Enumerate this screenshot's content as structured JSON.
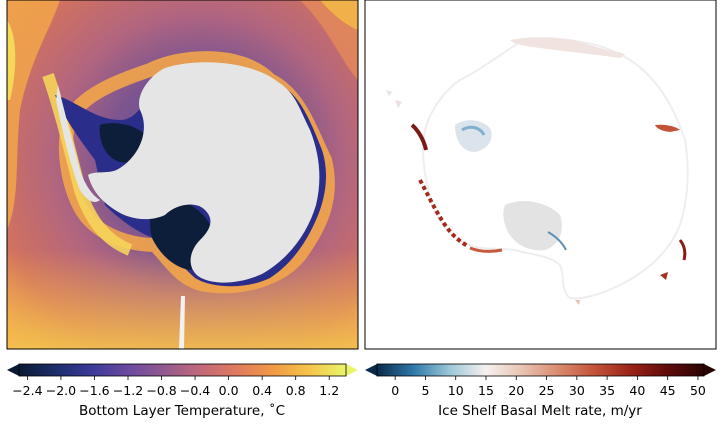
{
  "chart_data": [
    {
      "type": "heatmap",
      "subject": "map of Antarctica (south polar projection)",
      "colorbar": {
        "label": "Bottom Layer Temperature, ˚C",
        "ticks": [
          "−2.4",
          "−2.0",
          "−1.6",
          "−1.2",
          "−0.8",
          "−0.4",
          "0.0",
          "0.4",
          "0.8",
          "1.2"
        ],
        "range": [
          -2.5,
          1.4
        ],
        "extend": "both",
        "colormap": [
          "#0b1a33",
          "#1d2d6b",
          "#3b3a98",
          "#6a4aa0",
          "#93598f",
          "#c2697a",
          "#e07a5f",
          "#f09a44",
          "#f5c54b",
          "#e8f56a"
        ]
      },
      "land_color": "#e5e5e5"
    },
    {
      "type": "heatmap",
      "subject": "map of Antarctica (south polar projection)",
      "colorbar": {
        "label": "Ice Shelf Basal Melt rate, m/yr",
        "ticks": [
          "0",
          "5",
          "10",
          "15",
          "20",
          "25",
          "30",
          "35",
          "40",
          "45",
          "50"
        ],
        "range": [
          -3,
          51
        ],
        "extend": "both",
        "colormap": [
          "#0a2a4a",
          "#2f78a8",
          "#9cc7d9",
          "#f6f1ee",
          "#e8c3b3",
          "#d98a6e",
          "#c25238",
          "#9a2218",
          "#5e0b0b",
          "#2a0303"
        ]
      },
      "land_color": "#ffffff"
    }
  ]
}
